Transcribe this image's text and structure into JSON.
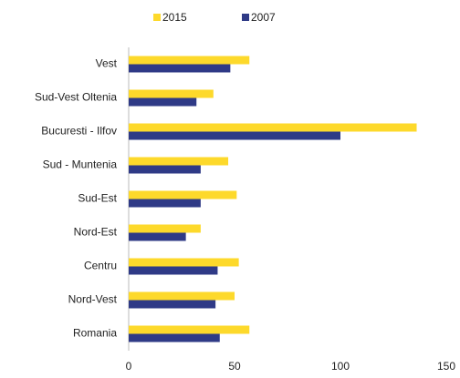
{
  "chart_data": {
    "type": "barh",
    "categories": [
      "Vest",
      "Sud-Vest Oltenia",
      "Bucuresti - Ilfov",
      "Sud - Muntenia",
      "Sud-Est",
      "Nord-Est",
      "Centru",
      "Nord-Vest",
      "Romania"
    ],
    "series": [
      {
        "name": "2015",
        "color": "#fdd92b",
        "values": [
          57,
          40,
          136,
          47,
          51,
          34,
          52,
          50,
          57
        ]
      },
      {
        "name": "2007",
        "color": "#2f3a86",
        "values": [
          48,
          32,
          100,
          34,
          34,
          27,
          42,
          41,
          43
        ]
      }
    ],
    "xlim": [
      0,
      150
    ],
    "xticks": [
      0,
      50,
      100,
      150
    ],
    "grid": false,
    "legend": "top"
  }
}
